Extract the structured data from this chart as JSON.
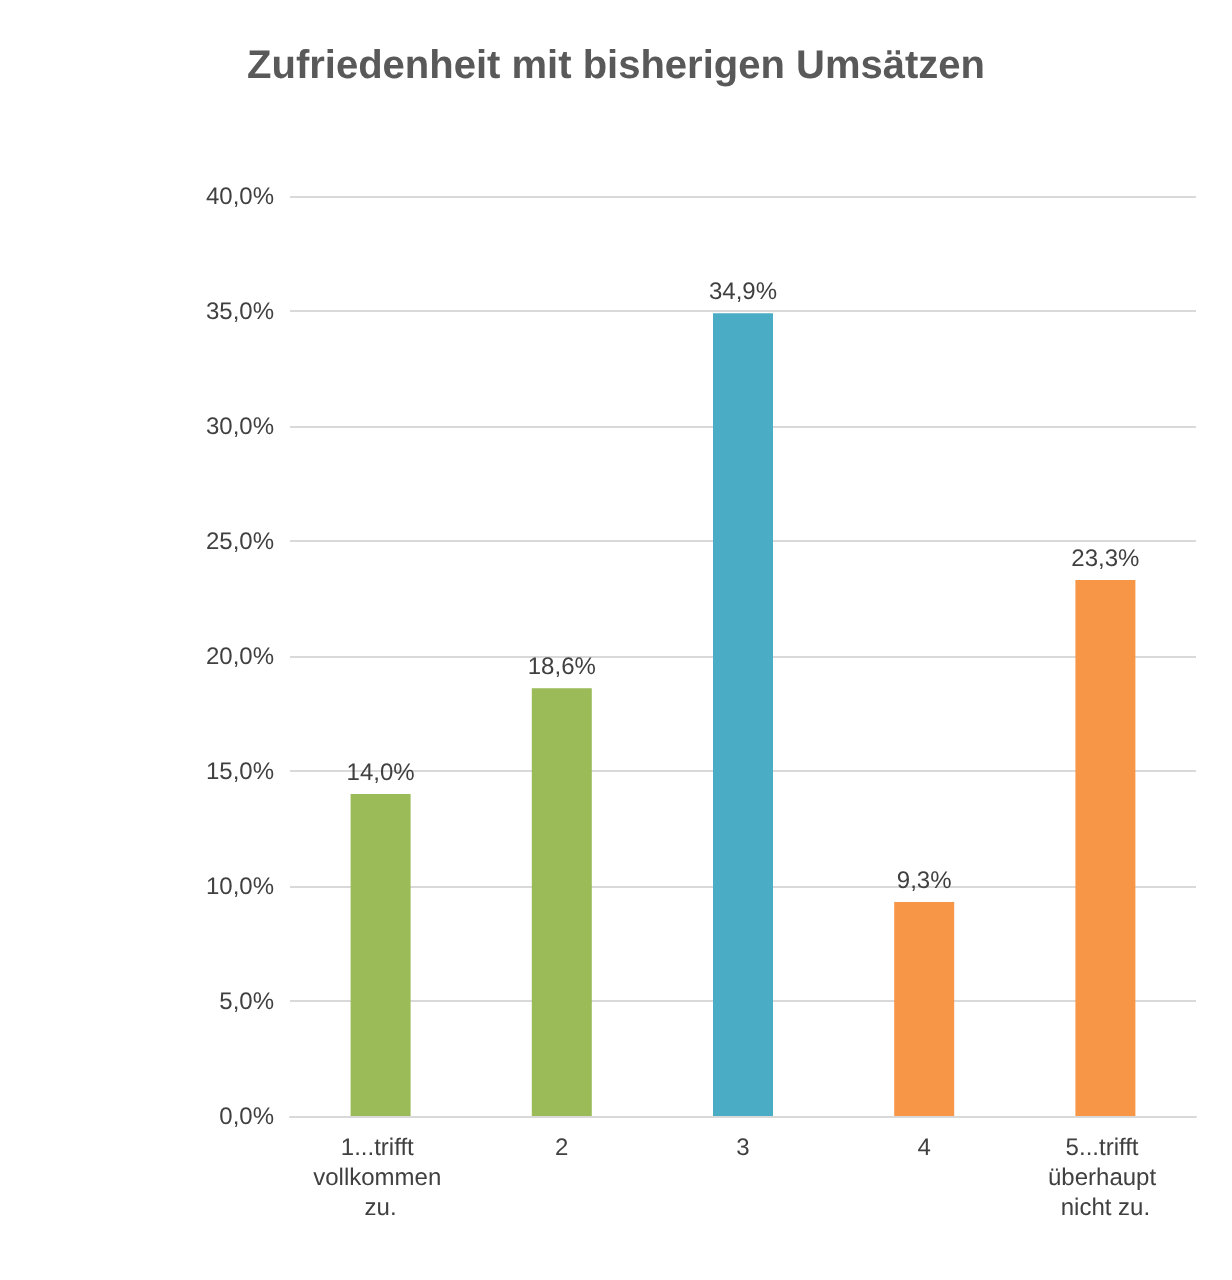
{
  "chart_data": {
    "type": "bar",
    "title": "Zufriedenheit mit bisherigen Umsätzen",
    "categories": [
      "1...trifft vollkommen zu.",
      "2",
      "3",
      "4",
      "5...trifft überhaupt nicht zu."
    ],
    "values": [
      14.0,
      18.6,
      34.9,
      9.3,
      23.3
    ],
    "colors": [
      "#9bbb59",
      "#9bbb59",
      "#4bacc6",
      "#f79646",
      "#f79646"
    ],
    "value_labels": [
      "14,0%",
      "18,6%",
      "34,9%",
      "9,3%",
      "23,3%"
    ],
    "ylim": [
      0,
      40
    ],
    "yticks": [
      {
        "value": 0,
        "label": "0,0%"
      },
      {
        "value": 5,
        "label": "5,0%"
      },
      {
        "value": 10,
        "label": "10,0%"
      },
      {
        "value": 15,
        "label": "15,0%"
      },
      {
        "value": 20,
        "label": "20,0%"
      },
      {
        "value": 25,
        "label": "25,0%"
      },
      {
        "value": 30,
        "label": "30,0%"
      },
      {
        "value": 35,
        "label": "35,0%"
      },
      {
        "value": 40,
        "label": "40,0%"
      }
    ],
    "grid": "y"
  }
}
